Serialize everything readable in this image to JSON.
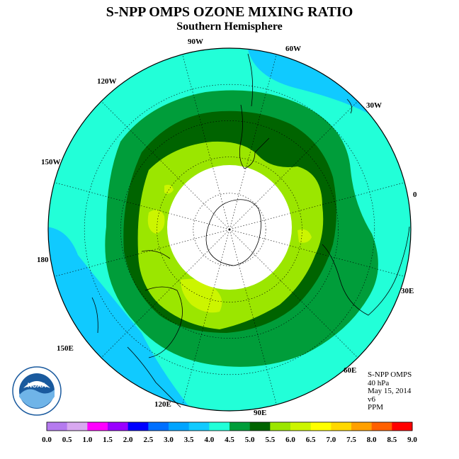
{
  "title": "S-NPP OMPS OZONE MIXING RATIO",
  "subtitle": "Southern Hemisphere",
  "longitude_labels": {
    "w90": "90W",
    "w60": "60W",
    "w30": "30W",
    "zero": "0",
    "w120": "120W",
    "w150": "150W",
    "d180": "180",
    "e30": "30E",
    "e150": "150E",
    "e60": "60E",
    "e120": "120E",
    "e90": "90E"
  },
  "info": {
    "instrument": "S-NPP OMPS",
    "level": "40 hPa",
    "date": "May 15, 2014",
    "version": "v6",
    "units": "PPM"
  },
  "colorbar": {
    "ticks": [
      "0.0",
      "0.5",
      "1.0",
      "1.5",
      "2.0",
      "2.5",
      "3.0",
      "3.5",
      "4.0",
      "4.5",
      "5.0",
      "5.5",
      "6.0",
      "6.5",
      "7.0",
      "7.5",
      "8.0",
      "8.5",
      "9.0"
    ],
    "colors": [
      "#b57aef",
      "#d8a8f0",
      "#ff00ff",
      "#9a00ff",
      "#0000ff",
      "#0070ff",
      "#00a4ff",
      "#10caff",
      "#22ffd8",
      "#009d3a",
      "#006400",
      "#9be600",
      "#ccf500",
      "#ffff00",
      "#ffd800",
      "#ffa000",
      "#ff6000",
      "#ff0000",
      "#8b5a3c"
    ]
  },
  "map_colors": {
    "range_3_0_3_5": "#10caff",
    "range_3_5_4_0": "#22ffd8",
    "range_4_0_4_5": "#009d3a",
    "range_4_5_5_0": "#006400",
    "range_5_0_5_5": "#9be600",
    "range_5_5_6_0": "#ccf500",
    "no_data": "#ffffff"
  },
  "logo": {
    "text": "NOAA"
  }
}
